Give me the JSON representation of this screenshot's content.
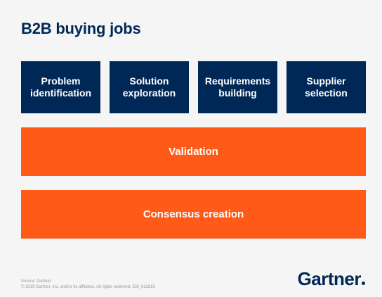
{
  "title": "B2B buying jobs",
  "jobs": [
    {
      "label": "Problem\nidentification"
    },
    {
      "label": "Solution\nexploration"
    },
    {
      "label": "Requirements\nbuilding"
    },
    {
      "label": "Supplier\nselection"
    }
  ],
  "bars": {
    "validation": "Validation",
    "consensus": "Consensus creation"
  },
  "footer": {
    "source": "Source: Gartner",
    "copyright": "© 2019 Gartner, Inc. and/or its affiliates. All rights reserved. CM_611919"
  },
  "logo": {
    "text": "Gartner"
  },
  "colors": {
    "navy": "#002856",
    "orange": "#ff5a17",
    "background": "#f5f5f5"
  }
}
